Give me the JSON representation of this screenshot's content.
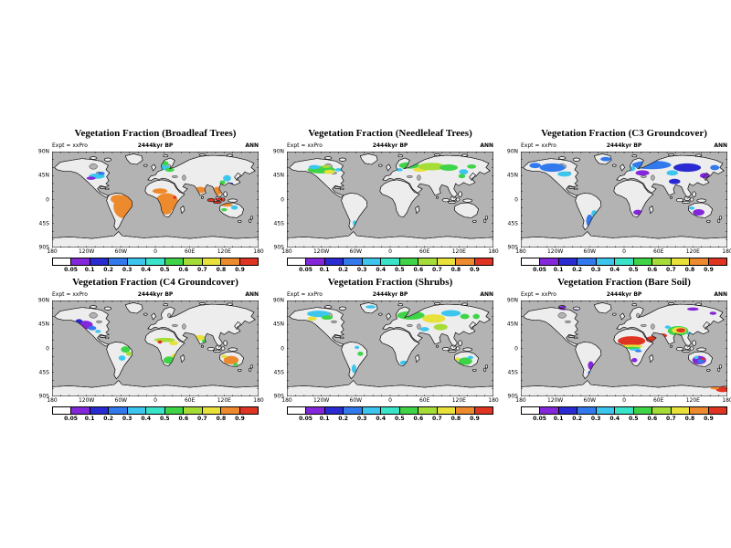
{
  "figure": {
    "background": "#ffffff",
    "ocean_color": "#b3b3b3",
    "land_color": "#ededed",
    "subtitle": "2444kyr BP",
    "expt_label": "Expt = xxPro",
    "season_label": "ANN",
    "x_ticks": [
      "180",
      "120W",
      "60W",
      "0",
      "60E",
      "120E",
      "180"
    ],
    "y_ticks": [
      "90N",
      "45N",
      "0",
      "45S",
      "90S"
    ],
    "colorbar": {
      "labels": [
        "0.05",
        "0.1",
        "0.2",
        "0.3",
        "0.4",
        "0.5",
        "0.6",
        "0.7",
        "0.8",
        "0.9"
      ],
      "colors": [
        "#ffffff",
        "#8426d9",
        "#2a2ad2",
        "#3179ec",
        "#3cc6ee",
        "#39e4c8",
        "#3fd448",
        "#a6dc36",
        "#e8e13a",
        "#ee8a2e",
        "#e03423"
      ]
    },
    "panels": [
      {
        "title": "Vegetation Fraction (Broadleaf Trees)",
        "blobs": [
          [
            125,
            103,
            18,
            22,
            9
          ],
          [
            114,
            89,
            12,
            8,
            9
          ],
          [
            133,
            95,
            8,
            8,
            9
          ],
          [
            200,
            95,
            20,
            17,
            9
          ],
          [
            188,
            74,
            13,
            5,
            9
          ],
          [
            199,
            112,
            9,
            6,
            9
          ],
          [
            214,
            86,
            3,
            3,
            10
          ],
          [
            258,
            72,
            10,
            6,
            9
          ],
          [
            288,
            74,
            8,
            8,
            9
          ],
          [
            288,
            92,
            18,
            5,
            10
          ],
          [
            305,
            100,
            10,
            3,
            9
          ],
          [
            318,
            105,
            6,
            4,
            4
          ],
          [
            300,
            109,
            5,
            3,
            6
          ],
          [
            78,
            46,
            14,
            5,
            4
          ],
          [
            68,
            50,
            8,
            3,
            1
          ],
          [
            86,
            41,
            6,
            3,
            3
          ],
          [
            193,
            30,
            12,
            5,
            4
          ],
          [
            205,
            34,
            8,
            4,
            6
          ],
          [
            197,
            22,
            6,
            4,
            6
          ],
          [
            305,
            50,
            7,
            6,
            4
          ],
          [
            297,
            58,
            5,
            4,
            6
          ],
          [
            312,
            61,
            4,
            3,
            2
          ]
        ]
      },
      {
        "title": "Vegetation Fraction (Needleleaf Trees)",
        "blobs": [
          [
            60,
            34,
            24,
            7,
            6
          ],
          [
            48,
            29,
            10,
            4,
            4
          ],
          [
            74,
            38,
            9,
            4,
            8
          ],
          [
            68,
            28,
            7,
            3,
            7
          ],
          [
            90,
            34,
            6,
            3,
            4
          ],
          [
            213,
            26,
            18,
            6,
            6
          ],
          [
            232,
            34,
            12,
            4,
            8
          ],
          [
            252,
            28,
            24,
            7,
            7
          ],
          [
            282,
            30,
            16,
            6,
            6
          ],
          [
            308,
            38,
            8,
            5,
            4
          ],
          [
            322,
            28,
            8,
            4,
            6
          ],
          [
            305,
            46,
            6,
            4,
            6
          ],
          [
            196,
            34,
            6,
            3,
            4
          ],
          [
            118,
            134,
            3,
            5,
            4
          ]
        ]
      },
      {
        "title": "Vegetation Fraction (C3 Groundcover)",
        "blobs": [
          [
            55,
            30,
            22,
            8,
            3
          ],
          [
            76,
            42,
            12,
            5,
            4
          ],
          [
            45,
            51,
            8,
            6,
            1
          ],
          [
            25,
            26,
            10,
            5,
            3
          ],
          [
            148,
            14,
            9,
            4,
            3
          ],
          [
            190,
            32,
            10,
            5,
            4
          ],
          [
            228,
            25,
            34,
            8,
            3
          ],
          [
            290,
            30,
            24,
            8,
            2
          ],
          [
            212,
            40,
            12,
            5,
            1
          ],
          [
            264,
            40,
            10,
            5,
            4
          ],
          [
            268,
            56,
            10,
            5,
            2
          ],
          [
            320,
            45,
            8,
            5,
            1
          ],
          [
            338,
            30,
            8,
            5,
            3
          ],
          [
            120,
            130,
            6,
            12,
            3
          ],
          [
            128,
            116,
            5,
            6,
            4
          ],
          [
            204,
            114,
            8,
            5,
            1
          ],
          [
            310,
            114,
            10,
            6,
            1
          ],
          [
            298,
            106,
            5,
            3,
            4
          ]
        ]
      },
      {
        "title": "Vegetation Fraction (C4 Groundcover)",
        "blobs": [
          [
            58,
            46,
            13,
            8,
            1
          ],
          [
            70,
            52,
            7,
            4,
            3
          ],
          [
            47,
            39,
            6,
            4,
            2
          ],
          [
            80,
            58,
            5,
            3,
            4
          ],
          [
            196,
            74,
            18,
            4,
            7
          ],
          [
            212,
            80,
            8,
            4,
            8
          ],
          [
            188,
            78,
            4,
            3,
            10
          ],
          [
            204,
            112,
            10,
            7,
            6
          ],
          [
            214,
            104,
            6,
            4,
            8
          ],
          [
            257,
            70,
            9,
            5,
            8
          ],
          [
            265,
            76,
            4,
            3,
            6
          ],
          [
            128,
            92,
            8,
            6,
            6
          ],
          [
            122,
            108,
            6,
            5,
            4
          ],
          [
            134,
            100,
            5,
            4,
            7
          ],
          [
            312,
            112,
            13,
            8,
            9
          ],
          [
            300,
            105,
            5,
            3,
            8
          ],
          [
            320,
            120,
            4,
            3,
            6
          ]
        ]
      },
      {
        "title": "Vegetation Fraction (Shrubs)",
        "blobs": [
          [
            55,
            25,
            20,
            6,
            4
          ],
          [
            70,
            32,
            10,
            4,
            6
          ],
          [
            44,
            34,
            8,
            4,
            8
          ],
          [
            146,
            12,
            9,
            3,
            4
          ],
          [
            216,
            28,
            24,
            8,
            6
          ],
          [
            256,
            34,
            20,
            8,
            8
          ],
          [
            286,
            24,
            17,
            6,
            4
          ],
          [
            268,
            50,
            12,
            6,
            7
          ],
          [
            240,
            54,
            8,
            4,
            4
          ],
          [
            310,
            30,
            8,
            5,
            6
          ],
          [
            330,
            30,
            6,
            5,
            6
          ],
          [
            204,
            117,
            7,
            4,
            4
          ],
          [
            311,
            114,
            12,
            7,
            6
          ],
          [
            320,
            107,
            5,
            3,
            4
          ],
          [
            297,
            110,
            4,
            3,
            8
          ],
          [
            117,
            128,
            4,
            8,
            4
          ],
          [
            128,
            100,
            5,
            4,
            6
          ],
          [
            122,
            88,
            4,
            3,
            4
          ]
        ]
      },
      {
        "title": "Vegetation Fraction (Bare Soil)",
        "blobs": [
          [
            193,
            76,
            24,
            9,
            10
          ],
          [
            193,
            86,
            20,
            3,
            8
          ],
          [
            195,
            89,
            14,
            2,
            6
          ],
          [
            199,
            92,
            10,
            2,
            4
          ],
          [
            205,
            95,
            6,
            2,
            3
          ],
          [
            229,
            73,
            11,
            6,
            10
          ],
          [
            247,
            66,
            8,
            4,
            10
          ],
          [
            236,
            82,
            6,
            3,
            4
          ],
          [
            274,
            57,
            18,
            9,
            6
          ],
          [
            276,
            56,
            13,
            6,
            8
          ],
          [
            279,
            56,
            8,
            4,
            10
          ],
          [
            256,
            50,
            5,
            3,
            4
          ],
          [
            293,
            62,
            4,
            3,
            4
          ],
          [
            75,
            14,
            10,
            4,
            1
          ],
          [
            95,
            18,
            5,
            2,
            1
          ],
          [
            230,
            12,
            14,
            3,
            1
          ],
          [
            300,
            16,
            10,
            3,
            1
          ],
          [
            335,
            24,
            6,
            3,
            1
          ],
          [
            311,
            112,
            12,
            8,
            1
          ],
          [
            314,
            114,
            6,
            4,
            3
          ],
          [
            306,
            107,
            4,
            3,
            4
          ],
          [
            318,
            110,
            3,
            2,
            10
          ],
          [
            122,
            122,
            5,
            8,
            1
          ],
          [
            120,
            136,
            3,
            4,
            3
          ],
          [
            198,
            112,
            5,
            4,
            1
          ],
          [
            352,
            167,
            12,
            5,
            10
          ],
          [
            338,
            164,
            8,
            3,
            9
          ]
        ]
      }
    ]
  }
}
